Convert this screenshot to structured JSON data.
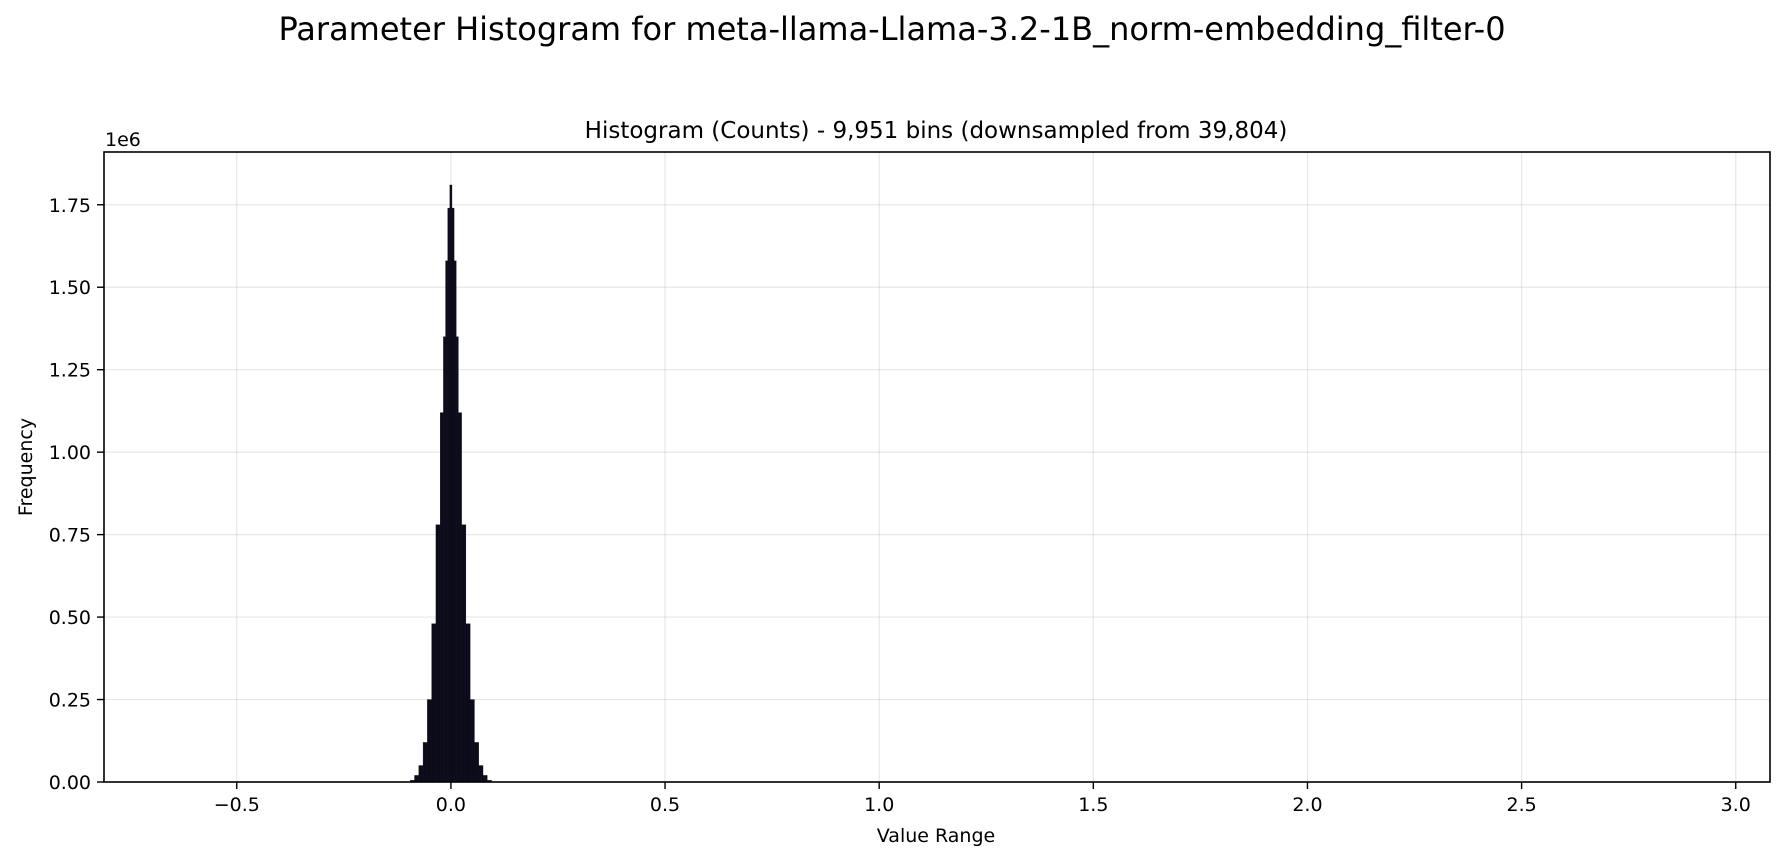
{
  "chart_data": {
    "type": "bar",
    "suptitle": "Parameter Histogram for meta-llama-Llama-3.2-1B_norm-embedding_filter-0",
    "title": "Histogram (Counts) - 9,951 bins (downsampled from 39,804)",
    "xlabel": "Value Range",
    "ylabel": "Frequency",
    "y_offset_text": "1e6",
    "xlim": [
      -0.81,
      3.08
    ],
    "ylim": [
      0,
      1.91
    ],
    "x_ticks": [
      -0.5,
      0.0,
      0.5,
      1.0,
      1.5,
      2.0,
      2.5,
      3.0
    ],
    "x_tick_labels": [
      "−0.5",
      "0.0",
      "0.5",
      "1.0",
      "1.5",
      "2.0",
      "2.5",
      "3.0"
    ],
    "y_ticks": [
      0,
      0.25,
      0.5,
      0.75,
      1.0,
      1.25,
      1.5,
      1.75
    ],
    "y_tick_labels": [
      "0.00",
      "0.25",
      "0.50",
      "0.75",
      "1.00",
      "1.25",
      "1.50",
      "1.75"
    ],
    "grid": true,
    "bar_color": "#0b0b1a",
    "series": [
      {
        "x": [
          -0.09,
          -0.08,
          -0.07,
          -0.06,
          -0.05,
          -0.04,
          -0.03,
          -0.02,
          -0.015,
          -0.01,
          -0.005,
          0.0,
          0.005,
          0.01,
          0.015,
          0.02,
          0.03,
          0.04,
          0.05,
          0.06,
          0.07,
          0.08,
          0.09
        ],
        "values": [
          0.005,
          0.02,
          0.05,
          0.12,
          0.25,
          0.48,
          0.78,
          1.12,
          1.35,
          1.58,
          1.74,
          1.81,
          1.74,
          1.58,
          1.35,
          1.12,
          0.78,
          0.48,
          0.25,
          0.12,
          0.05,
          0.02,
          0.005
        ]
      }
    ]
  }
}
